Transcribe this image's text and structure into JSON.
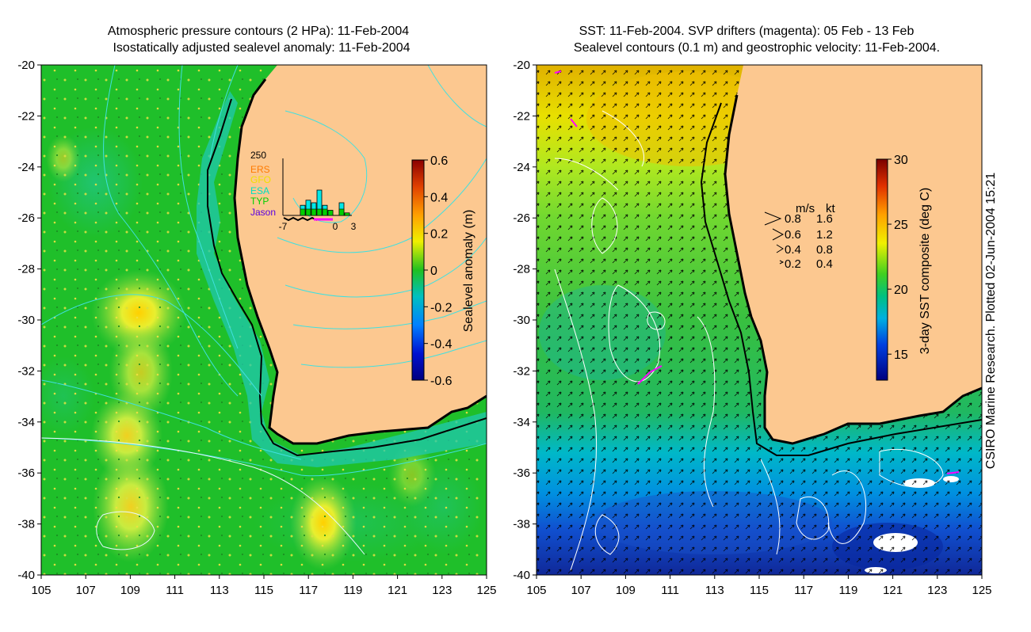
{
  "left_panel": {
    "title_line1": "Atmospheric pressure contours (2 HPa): 11-Feb-2004",
    "title_line2": "Isostatically adjusted sealevel anomaly: 11-Feb-2004",
    "colorbar_label": "Sealevel anomaly (m)",
    "colorbar_ticks": [
      "0.6",
      "0.4",
      "0.2",
      "0",
      "-0.2",
      "-0.4",
      "-0.6"
    ],
    "inset": {
      "ymax_label": "250",
      "legend": [
        "ERS",
        "GFO",
        "ESA",
        "TYP",
        "Jason"
      ],
      "legend_colors": [
        "#ff7a00",
        "#f0e000",
        "#00e0c0",
        "#00d000",
        "#5a00e0"
      ],
      "x_ticks": [
        "-7",
        "0",
        "3"
      ],
      "bars": [
        0,
        0,
        0,
        4,
        6,
        5,
        10,
        4,
        2,
        0,
        5,
        1
      ]
    }
  },
  "right_panel": {
    "title_line1": "SST: 11-Feb-2004. SVP drifters (magenta): 05 Feb - 13 Feb",
    "title_line2": "Sealevel contours (0.1 m) and geostrophic velocity: 11-Feb-2004.",
    "colorbar_label": "3-day SST composite (deg C)",
    "colorbar_ticks": [
      "30",
      "25",
      "20",
      "15"
    ],
    "velocity_legend": {
      "header_ms": "m/s",
      "header_kt": "kt",
      "rows": [
        [
          "0.8",
          "1.6"
        ],
        [
          "0.6",
          "1.2"
        ],
        [
          "0.4",
          "0.8"
        ],
        [
          "0.2",
          "0.4"
        ]
      ]
    }
  },
  "axes": {
    "lat_ticks": [
      "-20",
      "-22",
      "-24",
      "-26",
      "-28",
      "-30",
      "-32",
      "-34",
      "-36",
      "-38",
      "-40"
    ],
    "lon_ticks": [
      "105",
      "107",
      "109",
      "111",
      "113",
      "115",
      "117",
      "119",
      "121",
      "123",
      "125"
    ]
  },
  "credit": "CSIRO Marine Research. Plotted 02-Jun-2004 15:21",
  "colors": {
    "land": "#fcc890",
    "ocean_green": "#1fbf2a",
    "anomaly_high": "#f0e040",
    "coast": "#000000",
    "contour_cyan": "#40e0e0",
    "drifter": "#ff00ff"
  }
}
